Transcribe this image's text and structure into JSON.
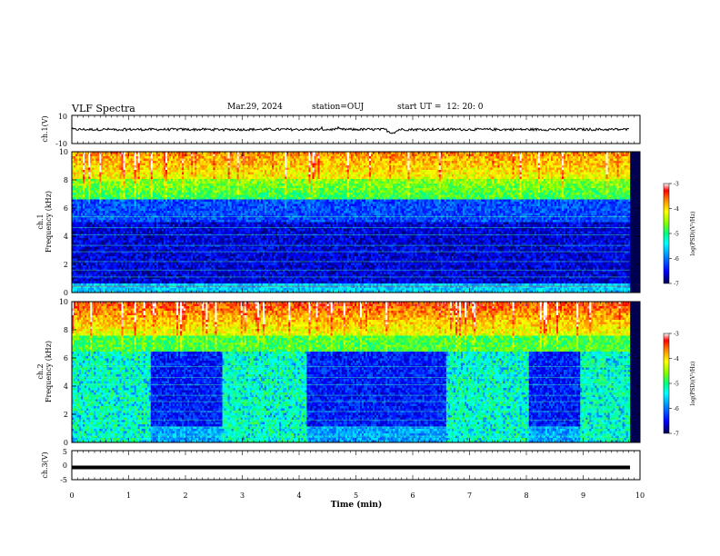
{
  "header": {
    "title": "VLF Spectra",
    "date": "Mar.29, 2024",
    "station": "station=OUJ",
    "start": "start UT =  12: 20: 0"
  },
  "colors": {
    "scale": [
      "#000050",
      "#0000ff",
      "#0090ff",
      "#00ffff",
      "#00ff80",
      "#80ff00",
      "#ffff00",
      "#ff8000",
      "#ff0000",
      "#ffffff"
    ]
  },
  "chart_data": [
    {
      "type": "line",
      "name": "ch1-waveform",
      "ylabel": "ch.1(V)",
      "ylim": [
        -10,
        10
      ],
      "y_ticks": [
        "10",
        "-10"
      ],
      "x": [
        0,
        10
      ],
      "level": 0,
      "noise_amplitude": 1.5
    },
    {
      "type": "heatmap",
      "name": "ch1-spectrogram",
      "ylabel_line1": "ch.1",
      "ylabel_line2": "Frequency (kHz)",
      "xlim": [
        0,
        10
      ],
      "data_end_min": 9.82,
      "ylim": [
        0,
        10
      ],
      "y_ticks": [
        "0",
        "2",
        "4",
        "6",
        "8",
        "10"
      ],
      "colorbar": {
        "label": "log(PSD)(V²/Hz)",
        "ticks": [
          "-3",
          "-4",
          "-5",
          "-6",
          "-7"
        ],
        "range": [
          -7,
          -3
        ]
      },
      "description_bands_khz": [
        {
          "from": 0,
          "to": 0.6,
          "level": -5.6
        },
        {
          "from": 0.6,
          "to": 5.0,
          "level": -6.6
        },
        {
          "from": 5.0,
          "to": 6.6,
          "level": -6.2
        },
        {
          "from": 6.6,
          "to": 8.0,
          "level": -4.9
        },
        {
          "from": 8.0,
          "to": 10.0,
          "level": -4.2
        }
      ]
    },
    {
      "type": "heatmap",
      "name": "ch2-spectrogram",
      "ylabel_line1": "ch.2",
      "ylabel_line2": "Frequency (kHz)",
      "xlim": [
        0,
        10
      ],
      "data_end_min": 9.82,
      "ylim": [
        0,
        10
      ],
      "y_ticks": [
        "0",
        "2",
        "4",
        "6",
        "8",
        "10"
      ],
      "colorbar": {
        "label": "log(PSD)(V²/Hz)",
        "ticks": [
          "-3",
          "-4",
          "-5",
          "-6",
          "-7"
        ],
        "range": [
          -7,
          -3
        ]
      },
      "quiet_intervals_min": [
        [
          1.4,
          2.65
        ],
        [
          4.12,
          6.58
        ],
        [
          8.05,
          8.95
        ]
      ],
      "quiet_top_khz": 6.5
    },
    {
      "type": "line",
      "name": "ch3-waveform",
      "ylabel": "ch.3(V)",
      "ylim": [
        -5,
        5
      ],
      "y_ticks": [
        "5",
        "0",
        "-5"
      ],
      "x": [
        0,
        10
      ],
      "level": -0.8
    }
  ],
  "xaxis": {
    "label": "Time (min)",
    "ticks": [
      "0",
      "1",
      "2",
      "3",
      "4",
      "5",
      "6",
      "7",
      "8",
      "9",
      "10"
    ]
  }
}
